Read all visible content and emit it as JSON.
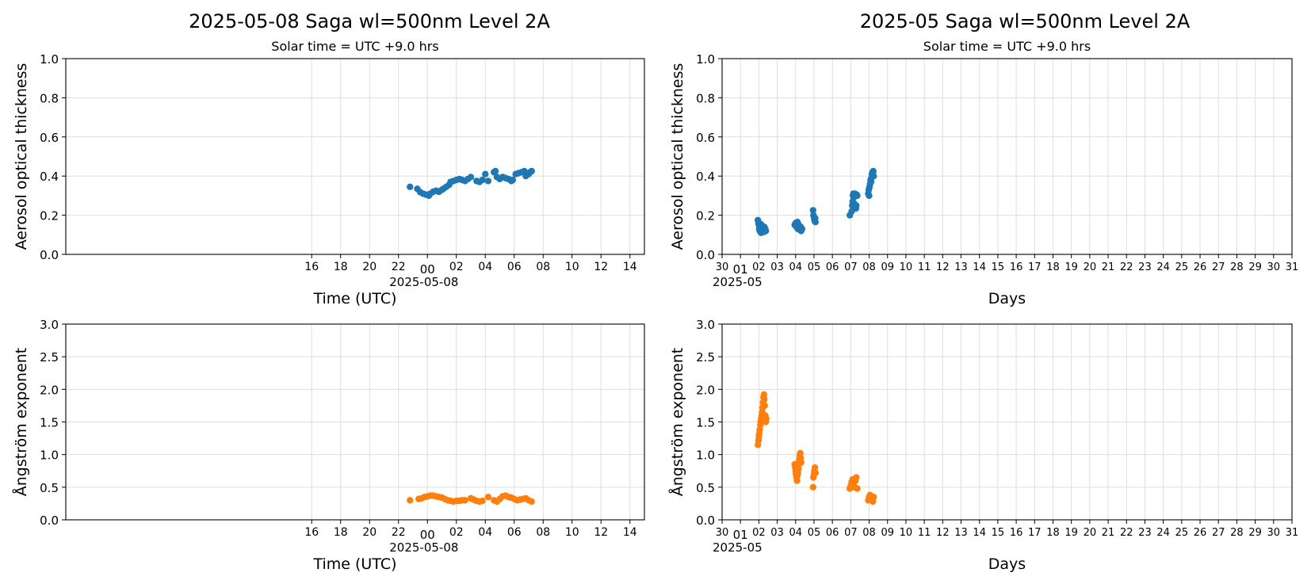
{
  "colors": {
    "aot": "#1f77b4",
    "angstrom": "#ff7f0e",
    "grid": "#dddddd"
  },
  "titles": {
    "left": "2025-05-08  Saga  wl=500nm  Level 2A",
    "right": "2025-05  Saga  wl=500nm  Level 2A"
  },
  "chart_data": [
    {
      "id": "daily-aot",
      "type": "scatter",
      "title": "Solar time = UTC +9.0 hrs",
      "xlabel": "Time (UTC)",
      "ylabel": "Aerosol optical thickness",
      "x_unit": "hours relative to 2025-05-08 00:00 UTC",
      "xlim": [
        -25,
        15
      ],
      "ylim": [
        0,
        1.0
      ],
      "yticks": [
        "0.0",
        "0.2",
        "0.4",
        "0.6",
        "0.8",
        "1.0"
      ],
      "xticks": [
        "16",
        "18",
        "20",
        "22",
        "00",
        "02",
        "04",
        "06",
        "08",
        "10",
        "12",
        "14"
      ],
      "xtick_values": [
        -8,
        -6,
        -4,
        -2,
        0,
        2,
        4,
        6,
        8,
        10,
        12,
        14
      ],
      "date_label": "2025-05-08",
      "grid": true,
      "series": [
        {
          "color": "#1f77b4",
          "points": [
            [
              -1.2,
              0.345
            ],
            [
              -0.7,
              0.335
            ],
            [
              -0.5,
              0.318
            ],
            [
              -0.3,
              0.31
            ],
            [
              -0.1,
              0.305
            ],
            [
              0.1,
              0.3
            ],
            [
              0.2,
              0.31
            ],
            [
              0.4,
              0.32
            ],
            [
              0.6,
              0.325
            ],
            [
              0.8,
              0.32
            ],
            [
              1.0,
              0.33
            ],
            [
              1.1,
              0.335
            ],
            [
              1.3,
              0.345
            ],
            [
              1.5,
              0.355
            ],
            [
              1.6,
              0.37
            ],
            [
              1.8,
              0.375
            ],
            [
              2.0,
              0.38
            ],
            [
              2.2,
              0.385
            ],
            [
              2.4,
              0.38
            ],
            [
              2.6,
              0.375
            ],
            [
              2.8,
              0.385
            ],
            [
              3.0,
              0.395
            ],
            [
              3.4,
              0.375
            ],
            [
              3.6,
              0.37
            ],
            [
              3.8,
              0.38
            ],
            [
              4.0,
              0.41
            ],
            [
              4.2,
              0.375
            ],
            [
              4.6,
              0.42
            ],
            [
              4.7,
              0.425
            ],
            [
              4.8,
              0.395
            ],
            [
              5.0,
              0.385
            ],
            [
              5.2,
              0.395
            ],
            [
              5.4,
              0.39
            ],
            [
              5.6,
              0.385
            ],
            [
              5.8,
              0.375
            ],
            [
              5.9,
              0.38
            ],
            [
              6.1,
              0.41
            ],
            [
              6.3,
              0.415
            ],
            [
              6.5,
              0.42
            ],
            [
              6.7,
              0.425
            ],
            [
              6.8,
              0.4
            ],
            [
              7.0,
              0.41
            ],
            [
              7.1,
              0.42
            ],
            [
              7.2,
              0.425
            ]
          ]
        }
      ]
    },
    {
      "id": "monthly-aot",
      "type": "scatter",
      "title": "Solar time = UTC +9.0 hrs",
      "xlabel": "Days",
      "ylabel": "Aerosol optical thickness",
      "x_unit": "day of May 2025 (fractional)",
      "xlim": [
        0.0,
        31.0
      ],
      "ylim": [
        0,
        1.0
      ],
      "yticks": [
        "0.0",
        "0.2",
        "0.4",
        "0.6",
        "0.8",
        "1.0"
      ],
      "xticks": [
        "30",
        "01",
        "02",
        "03",
        "04",
        "05",
        "06",
        "07",
        "08",
        "09",
        "10",
        "11",
        "12",
        "13",
        "14",
        "15",
        "16",
        "17",
        "18",
        "19",
        "20",
        "21",
        "22",
        "23",
        "24",
        "25",
        "26",
        "27",
        "28",
        "29",
        "30",
        "31"
      ],
      "xtick_values": [
        0,
        1,
        2,
        3,
        4,
        5,
        6,
        7,
        8,
        9,
        10,
        11,
        12,
        13,
        14,
        15,
        16,
        17,
        18,
        19,
        20,
        21,
        22,
        23,
        24,
        25,
        26,
        27,
        28,
        29,
        30,
        31
      ],
      "date_label": "2025-05",
      "grid": true,
      "series": [
        {
          "color": "#1f77b4",
          "points": [
            [
              1.95,
              0.175
            ],
            [
              1.98,
              0.16
            ],
            [
              2.0,
              0.15
            ],
            [
              2.02,
              0.13
            ],
            [
              2.05,
              0.12
            ],
            [
              2.08,
              0.14
            ],
            [
              2.1,
              0.155
            ],
            [
              2.12,
              0.11
            ],
            [
              2.15,
              0.125
            ],
            [
              2.18,
              0.135
            ],
            [
              2.2,
              0.145
            ],
            [
              2.22,
              0.12
            ],
            [
              2.25,
              0.13
            ],
            [
              2.28,
              0.115
            ],
            [
              2.3,
              0.14
            ],
            [
              2.32,
              0.125
            ],
            [
              2.35,
              0.13
            ],
            [
              2.38,
              0.12
            ],
            [
              3.95,
              0.15
            ],
            [
              4.0,
              0.16
            ],
            [
              4.05,
              0.14
            ],
            [
              4.08,
              0.155
            ],
            [
              4.1,
              0.165
            ],
            [
              4.12,
              0.13
            ],
            [
              4.15,
              0.145
            ],
            [
              4.18,
              0.15
            ],
            [
              4.2,
              0.135
            ],
            [
              4.22,
              0.13
            ],
            [
              4.25,
              0.125
            ],
            [
              4.28,
              0.14
            ],
            [
              4.3,
              0.12
            ],
            [
              4.35,
              0.13
            ],
            [
              4.95,
              0.225
            ],
            [
              4.97,
              0.2
            ],
            [
              5.0,
              0.19
            ],
            [
              5.02,
              0.18
            ],
            [
              5.04,
              0.17
            ],
            [
              5.06,
              0.185
            ],
            [
              5.08,
              0.165
            ],
            [
              6.95,
              0.2
            ],
            [
              7.05,
              0.22
            ],
            [
              7.08,
              0.25
            ],
            [
              7.1,
              0.27
            ],
            [
              7.12,
              0.3
            ],
            [
              7.14,
              0.31
            ],
            [
              7.16,
              0.29
            ],
            [
              7.18,
              0.26
            ],
            [
              7.2,
              0.24
            ],
            [
              7.22,
              0.31
            ],
            [
              7.25,
              0.3
            ],
            [
              7.28,
              0.235
            ],
            [
              7.3,
              0.25
            ],
            [
              7.32,
              0.305
            ],
            [
              7.35,
              0.3
            ],
            [
              7.95,
              0.31
            ],
            [
              7.98,
              0.33
            ],
            [
              8.0,
              0.3
            ],
            [
              8.02,
              0.345
            ],
            [
              8.05,
              0.36
            ],
            [
              8.08,
              0.38
            ],
            [
              8.1,
              0.37
            ],
            [
              8.12,
              0.39
            ],
            [
              8.15,
              0.41
            ],
            [
              8.18,
              0.42
            ],
            [
              8.2,
              0.415
            ],
            [
              8.22,
              0.425
            ],
            [
              8.25,
              0.4
            ]
          ]
        }
      ]
    },
    {
      "id": "daily-angstrom",
      "type": "scatter",
      "title": "",
      "xlabel": "Time (UTC)",
      "ylabel": "Ångström exponent",
      "x_unit": "hours relative to 2025-05-08 00:00 UTC",
      "xlim": [
        -25,
        15
      ],
      "ylim": [
        0,
        3.0
      ],
      "yticks": [
        "0.0",
        "0.5",
        "1.0",
        "1.5",
        "2.0",
        "2.5",
        "3.0"
      ],
      "xticks": [
        "16",
        "18",
        "20",
        "22",
        "00",
        "02",
        "04",
        "06",
        "08",
        "10",
        "12",
        "14"
      ],
      "xtick_values": [
        -8,
        -6,
        -4,
        -2,
        0,
        2,
        4,
        6,
        8,
        10,
        12,
        14
      ],
      "date_label": "2025-05-08",
      "grid": true,
      "series": [
        {
          "color": "#ff7f0e",
          "points": [
            [
              -1.2,
              0.3
            ],
            [
              -0.6,
              0.32
            ],
            [
              -0.4,
              0.33
            ],
            [
              -0.2,
              0.35
            ],
            [
              0.0,
              0.36
            ],
            [
              0.2,
              0.37
            ],
            [
              0.4,
              0.37
            ],
            [
              0.6,
              0.36
            ],
            [
              0.8,
              0.35
            ],
            [
              1.0,
              0.34
            ],
            [
              1.2,
              0.32
            ],
            [
              1.4,
              0.3
            ],
            [
              1.6,
              0.29
            ],
            [
              1.8,
              0.28
            ],
            [
              2.0,
              0.29
            ],
            [
              2.2,
              0.29
            ],
            [
              2.4,
              0.3
            ],
            [
              2.6,
              0.3
            ],
            [
              3.0,
              0.33
            ],
            [
              3.2,
              0.31
            ],
            [
              3.4,
              0.29
            ],
            [
              3.6,
              0.28
            ],
            [
              3.8,
              0.29
            ],
            [
              4.2,
              0.35
            ],
            [
              4.6,
              0.3
            ],
            [
              4.8,
              0.28
            ],
            [
              5.0,
              0.32
            ],
            [
              5.2,
              0.36
            ],
            [
              5.4,
              0.37
            ],
            [
              5.6,
              0.35
            ],
            [
              5.8,
              0.34
            ],
            [
              6.0,
              0.32
            ],
            [
              6.2,
              0.3
            ],
            [
              6.4,
              0.31
            ],
            [
              6.6,
              0.32
            ],
            [
              6.8,
              0.33
            ],
            [
              7.0,
              0.3
            ],
            [
              7.2,
              0.28
            ]
          ]
        }
      ]
    },
    {
      "id": "monthly-angstrom",
      "type": "scatter",
      "title": "",
      "xlabel": "Days",
      "ylabel": "Ångström exponent",
      "x_unit": "day of May 2025 (fractional)",
      "xlim": [
        0.0,
        31.0
      ],
      "ylim": [
        0,
        3.0
      ],
      "yticks": [
        "0.0",
        "0.5",
        "1.0",
        "1.5",
        "2.0",
        "2.5",
        "3.0"
      ],
      "xticks": [
        "30",
        "01",
        "02",
        "03",
        "04",
        "05",
        "06",
        "07",
        "08",
        "09",
        "10",
        "11",
        "12",
        "13",
        "14",
        "15",
        "16",
        "17",
        "18",
        "19",
        "20",
        "21",
        "22",
        "23",
        "24",
        "25",
        "26",
        "27",
        "28",
        "29",
        "30",
        "31"
      ],
      "xtick_values": [
        0,
        1,
        2,
        3,
        4,
        5,
        6,
        7,
        8,
        9,
        10,
        11,
        12,
        13,
        14,
        15,
        16,
        17,
        18,
        19,
        20,
        21,
        22,
        23,
        24,
        25,
        26,
        27,
        28,
        29,
        30,
        31
      ],
      "date_label": "2025-05",
      "grid": true,
      "series": [
        {
          "color": "#ff7f0e",
          "points": [
            [
              1.95,
              1.15
            ],
            [
              1.98,
              1.22
            ],
            [
              2.0,
              1.28
            ],
            [
              2.02,
              1.32
            ],
            [
              2.05,
              1.38
            ],
            [
              2.08,
              1.45
            ],
            [
              2.1,
              1.5
            ],
            [
              2.12,
              1.55
            ],
            [
              2.15,
              1.6
            ],
            [
              2.18,
              1.65
            ],
            [
              2.2,
              1.72
            ],
            [
              2.22,
              1.8
            ],
            [
              2.25,
              1.88
            ],
            [
              2.28,
              1.92
            ],
            [
              2.3,
              1.85
            ],
            [
              2.32,
              1.75
            ],
            [
              2.35,
              1.6
            ],
            [
              2.38,
              1.5
            ],
            [
              2.4,
              1.55
            ],
            [
              3.95,
              0.85
            ],
            [
              3.98,
              0.8
            ],
            [
              4.0,
              0.75
            ],
            [
              4.02,
              0.7
            ],
            [
              4.05,
              0.65
            ],
            [
              4.08,
              0.6
            ],
            [
              4.1,
              0.68
            ],
            [
              4.12,
              0.72
            ],
            [
              4.15,
              0.78
            ],
            [
              4.18,
              0.85
            ],
            [
              4.2,
              0.92
            ],
            [
              4.22,
              0.98
            ],
            [
              4.25,
              1.02
            ],
            [
              4.28,
              0.95
            ],
            [
              4.3,
              0.88
            ],
            [
              4.95,
              0.5
            ],
            [
              4.97,
              0.65
            ],
            [
              5.0,
              0.7
            ],
            [
              5.02,
              0.75
            ],
            [
              5.05,
              0.8
            ],
            [
              5.08,
              0.72
            ],
            [
              6.95,
              0.48
            ],
            [
              7.0,
              0.52
            ],
            [
              7.05,
              0.58
            ],
            [
              7.1,
              0.62
            ],
            [
              7.15,
              0.55
            ],
            [
              7.2,
              0.5
            ],
            [
              7.25,
              0.6
            ],
            [
              7.3,
              0.65
            ],
            [
              7.35,
              0.48
            ],
            [
              7.95,
              0.3
            ],
            [
              8.0,
              0.35
            ],
            [
              8.05,
              0.38
            ],
            [
              8.1,
              0.33
            ],
            [
              8.15,
              0.3
            ],
            [
              8.2,
              0.28
            ],
            [
              8.25,
              0.35
            ]
          ]
        }
      ]
    }
  ]
}
